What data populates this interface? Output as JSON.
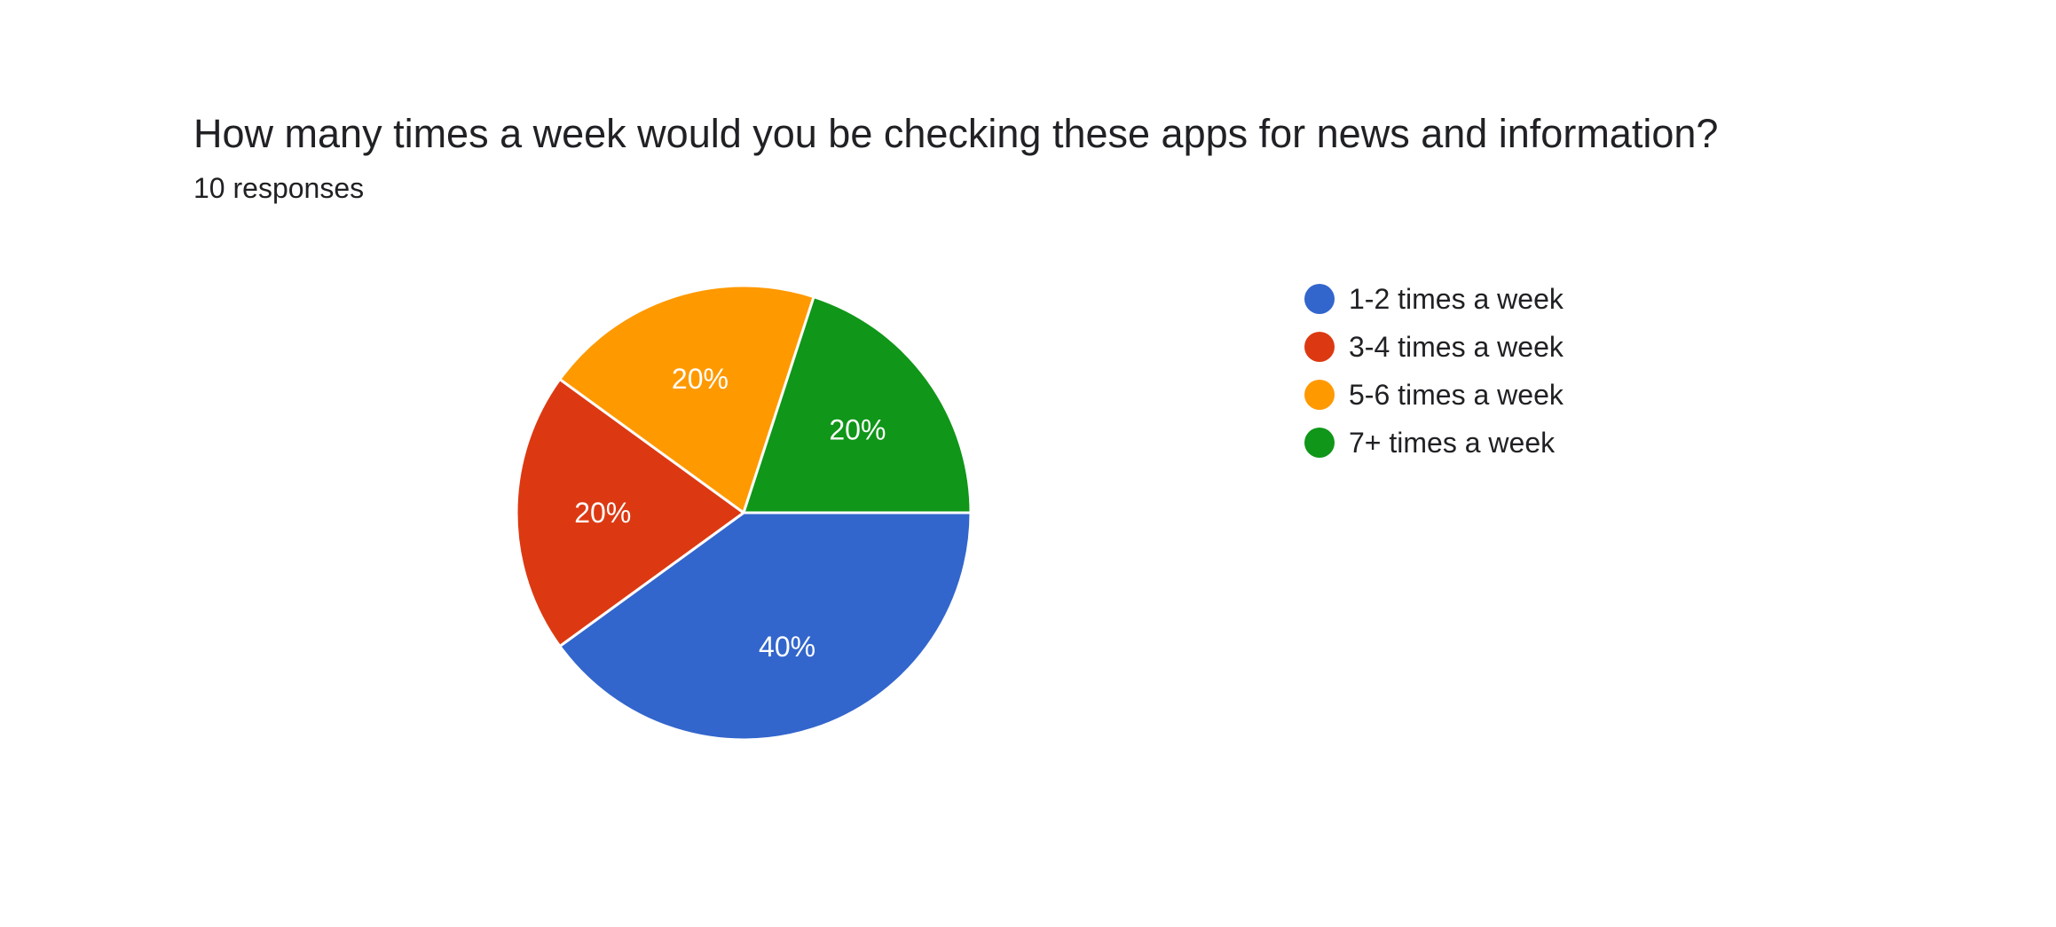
{
  "header": {
    "question": "How many times a week would you be checking these apps for news and information?",
    "response_count": "10 responses"
  },
  "chart_data": {
    "type": "pie",
    "categories": [
      "1-2 times a week",
      "3-4 times a week",
      "5-6 times a week",
      "7+ times a week"
    ],
    "values": [
      40,
      20,
      20,
      20
    ],
    "labels": [
      "40%",
      "20%",
      "20%",
      "20%"
    ],
    "colors": [
      "#3366cc",
      "#dc3912",
      "#ff9900",
      "#109618"
    ],
    "title": "How many times a week would you be checking these apps for news and information?",
    "subtitle": "10 responses",
    "start_angle_deg": 0,
    "direction": "clockwise",
    "legend_position": "right"
  },
  "legend": {
    "items": [
      {
        "label": "1-2 times a week",
        "color": "#3366cc"
      },
      {
        "label": "3-4 times a week",
        "color": "#dc3912"
      },
      {
        "label": "5-6 times a week",
        "color": "#ff9900"
      },
      {
        "label": "7+ times a week",
        "color": "#109618"
      }
    ]
  }
}
